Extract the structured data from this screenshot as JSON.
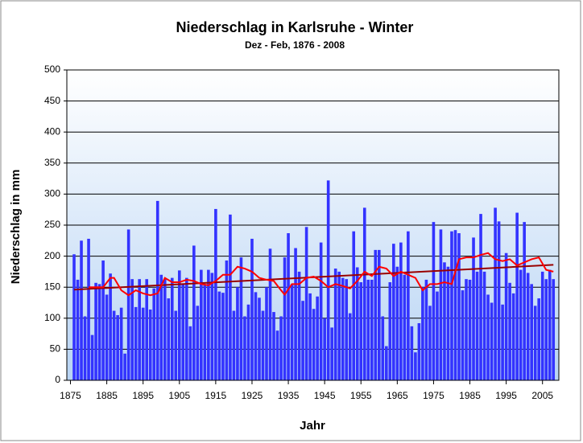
{
  "chart_data": {
    "type": "bar",
    "title": "Niederschlag in Karlsruhe - Winter",
    "subtitle": "Dez - Feb, 1876 - 2008",
    "x_label": "Jahr",
    "y_label": "Niederschlag in mm",
    "color": "#3333ff",
    "x": [
      1876,
      1877,
      1878,
      1879,
      1880,
      1881,
      1882,
      1883,
      1884,
      1885,
      1886,
      1887,
      1888,
      1889,
      1890,
      1891,
      1892,
      1893,
      1894,
      1895,
      1896,
      1897,
      1898,
      1899,
      1900,
      1901,
      1902,
      1903,
      1904,
      1905,
      1906,
      1907,
      1908,
      1909,
      1910,
      1911,
      1912,
      1913,
      1914,
      1915,
      1916,
      1917,
      1918,
      1919,
      1920,
      1921,
      1922,
      1923,
      1924,
      1925,
      1926,
      1927,
      1928,
      1929,
      1930,
      1931,
      1932,
      1933,
      1934,
      1935,
      1936,
      1937,
      1938,
      1939,
      1940,
      1941,
      1942,
      1943,
      1944,
      1945,
      1946,
      1947,
      1948,
      1949,
      1950,
      1951,
      1952,
      1953,
      1954,
      1955,
      1956,
      1957,
      1958,
      1959,
      1960,
      1961,
      1962,
      1963,
      1964,
      1965,
      1966,
      1967,
      1968,
      1969,
      1970,
      1971,
      1972,
      1973,
      1974,
      1975,
      1976,
      1977,
      1978,
      1979,
      1980,
      1981,
      1982,
      1983,
      1984,
      1985,
      1986,
      1987,
      1988,
      1989,
      1990,
      1991,
      1992,
      1993,
      1994,
      1995,
      1996,
      1997,
      1998,
      1999,
      2000,
      2001,
      2002,
      2003,
      2004,
      2005,
      2006,
      2007,
      2008
    ],
    "values": [
      203,
      162,
      225,
      103,
      228,
      73,
      157,
      155,
      193,
      138,
      172,
      112,
      105,
      117,
      43,
      243,
      163,
      118,
      163,
      117,
      163,
      114,
      148,
      289,
      170,
      163,
      132,
      165,
      112,
      177,
      155,
      165,
      87,
      217,
      120,
      178,
      155,
      178,
      173,
      276,
      143,
      141,
      193,
      267,
      112,
      150,
      198,
      103,
      122,
      228,
      142,
      133,
      112,
      150,
      212,
      110,
      80,
      103,
      198,
      237,
      155,
      213,
      175,
      128,
      247,
      140,
      115,
      135,
      222,
      100,
      322,
      85,
      180,
      175,
      165,
      163,
      108,
      240,
      182,
      158,
      278,
      162,
      162,
      210,
      210,
      103,
      55,
      158,
      220,
      183,
      222,
      170,
      240,
      87,
      45,
      92,
      150,
      162,
      120,
      255,
      143,
      243,
      190,
      183,
      240,
      242,
      237,
      145,
      163,
      162,
      230,
      175,
      268,
      175,
      138,
      125,
      278,
      256,
      122,
      205,
      157,
      140,
      270,
      178,
      255,
      173,
      155,
      120,
      132,
      175,
      163,
      178,
      163
    ],
    "moving_average": {
      "color": "#ff0000",
      "x": [
        1880,
        1884,
        1886,
        1887,
        1889,
        1891,
        1893,
        1895,
        1897,
        1899,
        1901,
        1903,
        1905,
        1907,
        1909,
        1911,
        1913,
        1915,
        1917,
        1919,
        1921,
        1923,
        1925,
        1927,
        1929,
        1931,
        1933,
        1934,
        1936,
        1938,
        1940,
        1942,
        1944,
        1946,
        1948,
        1950,
        1952,
        1954,
        1956,
        1958,
        1960,
        1962,
        1964,
        1966,
        1968,
        1970,
        1972,
        1974,
        1976,
        1978,
        1980,
        1982,
        1984,
        1986,
        1988,
        1990,
        1992,
        1994,
        1996,
        1998,
        2000,
        2002,
        2004,
        2006,
        2008
      ],
      "values": [
        150,
        150,
        165,
        165,
        145,
        137,
        145,
        140,
        137,
        140,
        165,
        158,
        158,
        162,
        160,
        155,
        153,
        160,
        170,
        170,
        183,
        180,
        175,
        165,
        162,
        160,
        145,
        138,
        155,
        155,
        165,
        167,
        160,
        150,
        155,
        152,
        148,
        160,
        175,
        168,
        183,
        180,
        168,
        175,
        170,
        165,
        145,
        155,
        155,
        158,
        155,
        195,
        198,
        198,
        202,
        205,
        195,
        192,
        195,
        185,
        190,
        195,
        198,
        178,
        175
      ]
    },
    "trend": {
      "color": "#990000",
      "x": [
        1876,
        2008
      ],
      "values": [
        146,
        186
      ]
    },
    "xlim": [
      1874,
      2009.5
    ],
    "xticks": [
      1875,
      1885,
      1895,
      1905,
      1915,
      1925,
      1935,
      1945,
      1955,
      1965,
      1975,
      1985,
      1995,
      2005
    ],
    "ylim": [
      0,
      500
    ],
    "yticks": [
      0,
      50,
      100,
      150,
      200,
      250,
      300,
      350,
      400,
      450,
      500
    ],
    "grid": true
  }
}
